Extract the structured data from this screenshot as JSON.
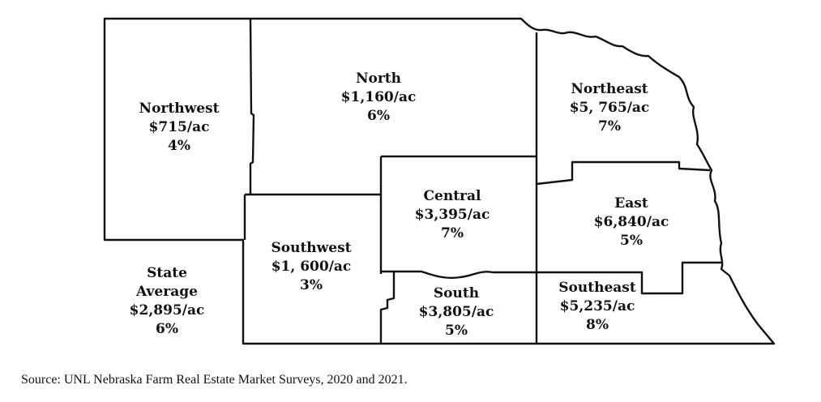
{
  "regions": {
    "northwest": {
      "name": "Northwest",
      "value": "$715/ac",
      "change": "4%"
    },
    "north": {
      "name": "North",
      "value": "$1,160/ac",
      "change": "6%"
    },
    "northeast": {
      "name": "Northeast",
      "value": "$5, 765/ac",
      "change": "7%"
    },
    "central": {
      "name": "Central",
      "value": "$3,395/ac",
      "change": "7%"
    },
    "east": {
      "name": "East",
      "value": "$6,840/ac",
      "change": "5%"
    },
    "southwest": {
      "name": "Southwest",
      "value": "$1, 600/ac",
      "change": "3%"
    },
    "south": {
      "name": "South",
      "value": "$3,805/ac",
      "change": "5%"
    },
    "southeast": {
      "name": "Southeast",
      "value": "$5,235/ac",
      "change": "8%"
    }
  },
  "state_average": {
    "line1": "State",
    "line2": "Average",
    "value": "$2,895/ac",
    "change": "6%"
  },
  "source": "Source:  UNL Nebraska Farm Real Estate Market Surveys, 2020 and 2021."
}
